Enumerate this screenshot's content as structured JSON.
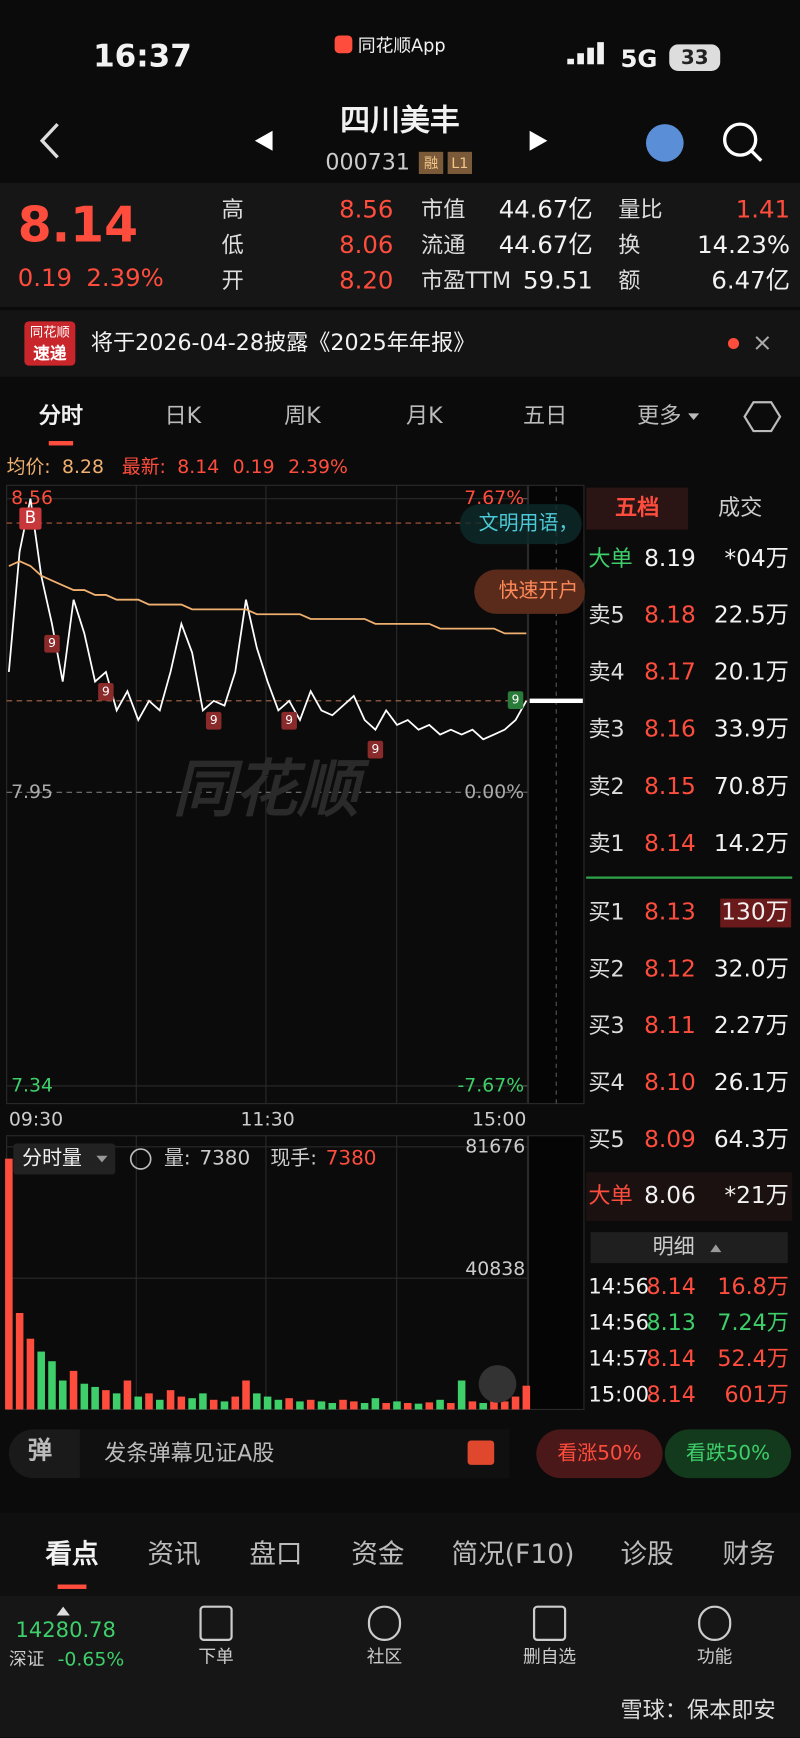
{
  "status": {
    "time": "16:37",
    "app": "同花顺App",
    "network": "5G",
    "battery": "33"
  },
  "header": {
    "name": "四川美丰",
    "code": "000731",
    "tags": [
      "融",
      "L1"
    ]
  },
  "quote": {
    "price": "8.14",
    "change": "0.19",
    "pct": "2.39%",
    "stats": [
      [
        "高",
        "8.56"
      ],
      [
        "低",
        "8.06"
      ],
      [
        "开",
        "8.20"
      ],
      [
        "市值",
        "44.67亿"
      ],
      [
        "流通",
        "44.67亿"
      ],
      [
        "市盈TTM",
        "59.51"
      ],
      [
        "量比",
        "1.41"
      ],
      [
        "换",
        "14.23%"
      ],
      [
        "额",
        "6.47亿"
      ]
    ]
  },
  "notice": {
    "badge": [
      "同花顺",
      "速递"
    ],
    "text": "将于2026-04-28披露《2025年年报》"
  },
  "tabs": [
    "分时",
    "日K",
    "周K",
    "月K",
    "五日",
    "更多"
  ],
  "chart_data": {
    "type": "line",
    "legend": {
      "avg_label": "均价:",
      "avg": "8.28",
      "latest_label": "最新:",
      "latest": "8.14",
      "change": "0.19",
      "pct": "2.39%"
    },
    "categories": [
      "09:30",
      null,
      null,
      null,
      null,
      null,
      null,
      null,
      null,
      null,
      null,
      null,
      null,
      null,
      null,
      null,
      null,
      null,
      null,
      null,
      null,
      null,
      null,
      null,
      "11:30",
      null,
      null,
      null,
      null,
      null,
      null,
      null,
      null,
      null,
      null,
      null,
      null,
      null,
      null,
      null,
      null,
      null,
      null,
      null,
      null,
      null,
      null,
      null,
      "15:00"
    ],
    "series": [
      {
        "name": "价格",
        "color": "#ffffff",
        "values": [
          8.2,
          8.45,
          8.56,
          8.4,
          8.3,
          8.18,
          8.35,
          8.28,
          8.18,
          8.2,
          8.12,
          8.16,
          8.1,
          8.14,
          8.12,
          8.2,
          8.3,
          8.24,
          8.12,
          8.14,
          8.13,
          8.2,
          8.35,
          8.25,
          8.18,
          8.12,
          8.14,
          8.1,
          8.16,
          8.12,
          8.11,
          8.13,
          8.15,
          8.1,
          8.08,
          8.12,
          8.09,
          8.1,
          8.08,
          8.09,
          8.07,
          8.08,
          8.07,
          8.08,
          8.06,
          8.07,
          8.08,
          8.1,
          8.14
        ]
      },
      {
        "name": "均价",
        "color": "#f0b070",
        "values": [
          8.42,
          8.43,
          8.42,
          8.4,
          8.39,
          8.38,
          8.37,
          8.37,
          8.36,
          8.36,
          8.35,
          8.35,
          8.35,
          8.34,
          8.34,
          8.34,
          8.34,
          8.33,
          8.33,
          8.33,
          8.33,
          8.33,
          8.33,
          8.32,
          8.32,
          8.32,
          8.32,
          8.32,
          8.31,
          8.31,
          8.31,
          8.31,
          8.31,
          8.31,
          8.3,
          8.3,
          8.3,
          8.3,
          8.3,
          8.3,
          8.29,
          8.29,
          8.29,
          8.29,
          8.29,
          8.29,
          8.28,
          8.28,
          8.28
        ]
      }
    ],
    "ylim": [
      7.34,
      8.56
    ],
    "yticks": [
      8.56,
      7.95,
      7.34
    ],
    "y2lim": [
      -7.67,
      7.67
    ],
    "y2ticks": [
      {
        "value": 7.67,
        "label": "7.67%"
      },
      {
        "value": 0,
        "label": "0.00%"
      },
      {
        "value": -7.67,
        "label": "-7.67%"
      }
    ],
    "signals": [
      {
        "label": "B",
        "index": 2
      },
      {
        "label": "9",
        "index": 4
      },
      {
        "label": "9",
        "index": 9
      },
      {
        "label": "9",
        "index": 19
      },
      {
        "label": "9",
        "index": 26
      },
      {
        "label": "9",
        "index": 34
      },
      {
        "label": "9",
        "index": 47
      }
    ],
    "overlays": [
      "文明用语，",
      "快速开户"
    ],
    "watermark": "同花顺"
  },
  "volume_data": {
    "type": "bar",
    "label": "分时量",
    "vol_label": "量:",
    "vol": "7380",
    "hand_label": "现手:",
    "hand": "7380",
    "ylim": [
      0,
      81676
    ],
    "yticks": [
      81676,
      40838
    ],
    "values": [
      78000,
      30000,
      22000,
      18000,
      15000,
      9000,
      12000,
      8000,
      7000,
      6000,
      5000,
      9000,
      4000,
      5000,
      3000,
      6000,
      4000,
      3500,
      5000,
      3000,
      2500,
      4000,
      9000,
      5000,
      4000,
      3000,
      3500,
      2500,
      3000,
      2500,
      2000,
      3000,
      2500,
      2000,
      3500,
      2000,
      2500,
      2000,
      1800,
      2200,
      3000,
      2000,
      9000,
      2500,
      2000,
      3000,
      2500,
      4000,
      7380
    ]
  },
  "orderbook": {
    "tabs": [
      "五档",
      "成交"
    ],
    "big_sell": [
      "大单",
      "8.19",
      "*04万"
    ],
    "sells": [
      [
        "卖5",
        "8.18",
        "22.5万"
      ],
      [
        "卖4",
        "8.17",
        "20.1万"
      ],
      [
        "卖3",
        "8.16",
        "33.9万"
      ],
      [
        "卖2",
        "8.15",
        "70.8万"
      ],
      [
        "卖1",
        "8.14",
        "14.2万"
      ]
    ],
    "buys": [
      [
        "买1",
        "8.13",
        "130万"
      ],
      [
        "买2",
        "8.12",
        "32.0万"
      ],
      [
        "买3",
        "8.11",
        "2.27万"
      ],
      [
        "买4",
        "8.10",
        "26.1万"
      ],
      [
        "买5",
        "8.09",
        "64.3万"
      ]
    ],
    "big_buy": [
      "大单",
      "8.06",
      "*21万"
    ],
    "detail": "明细",
    "trades": [
      [
        "14:56",
        "8.14",
        "16.8万"
      ],
      [
        "14:56",
        "8.13",
        "7.24万"
      ],
      [
        "14:57",
        "8.14",
        "52.4万"
      ],
      [
        "15:00",
        "8.14",
        "601万"
      ]
    ]
  },
  "danmaku": {
    "icon": "弹",
    "placeholder": "发条弹幕见证A股",
    "up": "看涨50%",
    "down": "看跌50%"
  },
  "bottom_tabs": [
    "看点",
    "资讯",
    "盘口",
    "资金",
    "简况(F10)",
    "诊股",
    "财务"
  ],
  "footer": {
    "index": "14280.78",
    "index_name": "深证",
    "index_pct": "-0.65%",
    "nav": [
      "下单",
      "社区",
      "删自选",
      "功能"
    ],
    "watermark": "雪球：保本即安"
  }
}
